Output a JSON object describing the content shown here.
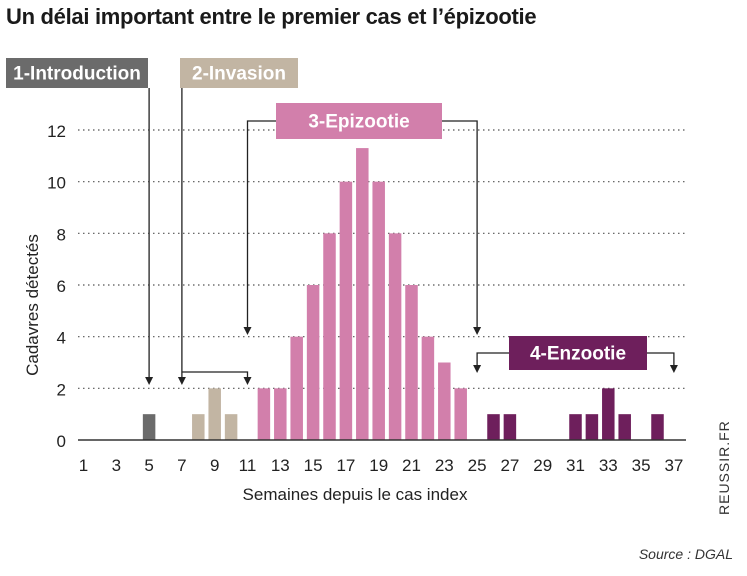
{
  "header": {
    "title": "Un délai important entre le premier cas et l’épizootie"
  },
  "footer": {
    "source": "Source : DGAL",
    "credit": "REUSSIR.FR"
  },
  "chart_data": {
    "type": "bar",
    "title": "Un délai important entre le premier cas et l’épizootie",
    "xlabel": "Semaines depuis le cas index",
    "ylabel": "Cadavres détectés",
    "ylim": [
      0,
      12
    ],
    "yticks": [
      0,
      2,
      4,
      6,
      8,
      10,
      12
    ],
    "xticks": [
      1,
      3,
      5,
      7,
      9,
      11,
      13,
      15,
      17,
      19,
      21,
      23,
      25,
      27,
      29,
      31,
      33,
      35,
      37
    ],
    "xlim": [
      0,
      38
    ],
    "grid": "horizontal dotted",
    "phases": [
      {
        "name": "1-Introduction",
        "color": "#6b6b6b",
        "text_color": "#ffffff",
        "points_to": [
          5
        ]
      },
      {
        "name": "2-Invasion",
        "color": "#c2b5a3",
        "text_color": "#ffffff",
        "points_to": [
          7,
          11
        ]
      },
      {
        "name": "3-Epizootie",
        "color": "#d27fab",
        "text_color": "#ffffff",
        "points_to": [
          11,
          25
        ]
      },
      {
        "name": "4-Enzootie",
        "color": "#6e1f5c",
        "text_color": "#ffffff",
        "points_to": [
          25,
          37
        ]
      }
    ],
    "series": [
      {
        "phase": "1-Introduction",
        "color": "#6b6b6b",
        "x": [
          5
        ],
        "values": [
          1
        ]
      },
      {
        "phase": "2-Invasion",
        "color": "#c2b5a3",
        "x": [
          8,
          9,
          10
        ],
        "values": [
          1,
          2,
          1
        ]
      },
      {
        "phase": "3-Epizootie",
        "color": "#d27fab",
        "x": [
          12,
          13,
          14,
          15,
          16,
          17,
          18,
          19,
          20,
          21,
          22,
          23,
          24
        ],
        "values": [
          2,
          2,
          4,
          6,
          8,
          10,
          11.3,
          10,
          8,
          6,
          4,
          3,
          2
        ]
      },
      {
        "phase": "4-Enzootie",
        "color": "#6e1f5c",
        "x": [
          26,
          27,
          31,
          32,
          33,
          34,
          36
        ],
        "values": [
          1,
          1,
          1,
          1,
          2,
          1,
          1
        ]
      }
    ]
  }
}
